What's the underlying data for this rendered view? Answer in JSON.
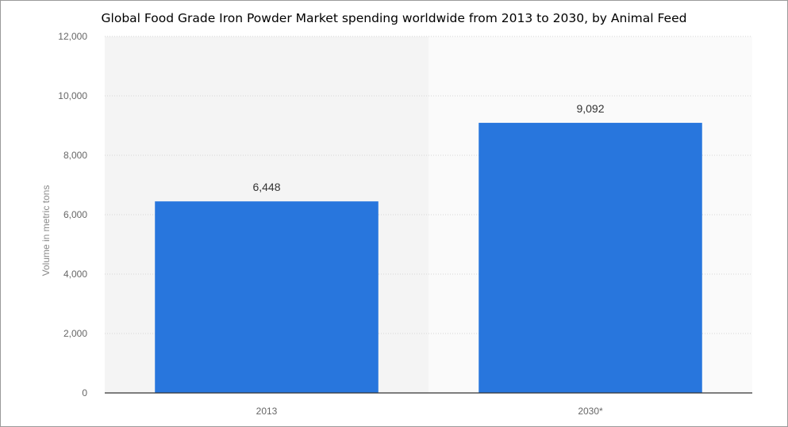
{
  "chart_data": {
    "type": "bar",
    "title": "Global Food Grade Iron Powder Market spending worldwide from 2013 to 2030, by Animal Feed",
    "ylabel": "Volume in metric tons",
    "xlabel": "",
    "categories": [
      "2013",
      "2030*"
    ],
    "values": [
      6448,
      9092
    ],
    "value_labels": [
      "6,448",
      "9,092"
    ],
    "ylim": [
      0,
      12000
    ],
    "yticks": [
      0,
      2000,
      4000,
      6000,
      8000,
      10000,
      12000
    ],
    "ytick_labels": [
      "0",
      "2,000",
      "4,000",
      "6,000",
      "8,000",
      "10,000",
      "12,000"
    ],
    "grid": true,
    "forecast_shaded": true,
    "colors": {
      "bar": "#2876dd",
      "plot_background": "#f4f4f4",
      "forecast_background": "#fafafa",
      "grid": "#d6d6d6",
      "axis": "#333333"
    }
  }
}
